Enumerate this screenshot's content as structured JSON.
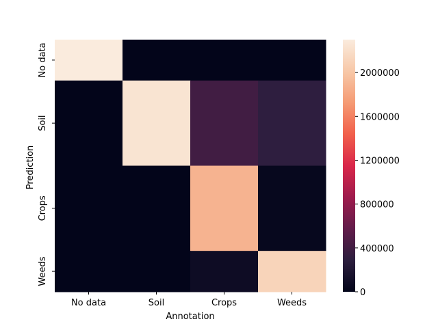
{
  "chart_data": {
    "type": "heatmap",
    "title": "",
    "xlabel": "Annotation",
    "ylabel": "Prediction",
    "x_categories": [
      "No data",
      "Soil",
      "Crops",
      "Weeds"
    ],
    "y_categories": [
      "No data",
      "Soil",
      "Crops",
      "Weeds"
    ],
    "row_heights": [
      60,
      125,
      125,
      60
    ],
    "values": [
      [
        2300000,
        0,
        0,
        0
      ],
      [
        0,
        2240000,
        400000,
        300000
      ],
      [
        0,
        0,
        1880000,
        30000
      ],
      [
        0,
        0,
        80000,
        2110000
      ]
    ],
    "colorbar": {
      "min": 0,
      "max": 2300000,
      "ticks": [
        0,
        400000,
        800000,
        1200000,
        1600000,
        2000000
      ],
      "tick_labels": [
        "0",
        "400000",
        "800000",
        "1200000",
        "1600000",
        "2000000"
      ],
      "colors": [
        "#03051a",
        "#2c1e3e",
        "#621c4a",
        "#9e1b4c",
        "#d9274a",
        "#f1604b",
        "#f59b74",
        "#f7c8a8",
        "#faebdd"
      ]
    },
    "grid": false,
    "legend": "colorbar-right"
  }
}
